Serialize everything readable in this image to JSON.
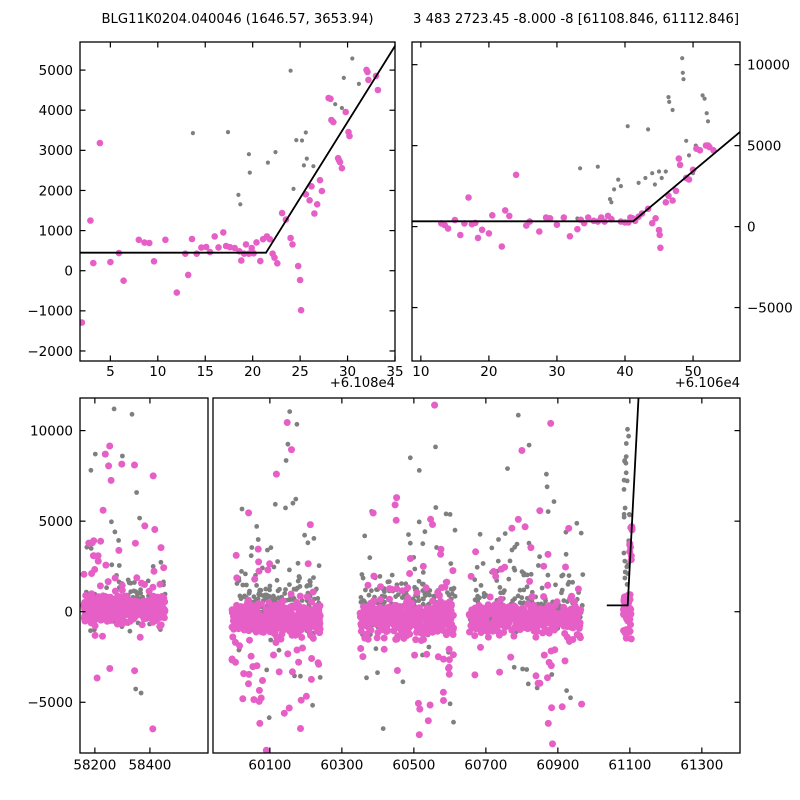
{
  "figure": {
    "titles": {
      "left": "BLG11K0204.040046 (1646.57, 3653.94)",
      "right": "3 483 2723.45 -8.000 -8 [61108.846, 61112.846]"
    },
    "offsets": {
      "left": "+6.108e4",
      "right": "+6.106e4"
    }
  },
  "colors": {
    "pink": "#e65fc6",
    "gray": "#7f7f7f",
    "line": "#000000",
    "frame": "#000000"
  },
  "chart_data": [
    {
      "type": "scatter",
      "title": "BLG11K0204.040046 (1646.57, 3653.94)",
      "x_offset_label": "+6.108e4",
      "xlim": [
        1.8,
        35
      ],
      "ylim": [
        -2250,
        5700
      ],
      "xticks": [
        5,
        10,
        15,
        20,
        25,
        30,
        35
      ],
      "yticks": [
        -2000,
        -1000,
        0,
        1000,
        2000,
        3000,
        4000,
        5000
      ],
      "y_label_side": "left",
      "line": [
        [
          1.8,
          450
        ],
        [
          21.4,
          450
        ],
        [
          35,
          5600
        ]
      ],
      "pink": [
        [
          2.0,
          -1290
        ],
        [
          2.9,
          1250
        ],
        [
          3.2,
          190
        ],
        [
          3.9,
          3180
        ],
        [
          5.0,
          215
        ],
        [
          5.9,
          440
        ],
        [
          6.4,
          -250
        ],
        [
          8.0,
          770
        ],
        [
          8.6,
          700
        ],
        [
          9.1,
          690
        ],
        [
          9.6,
          235
        ],
        [
          10.8,
          770
        ],
        [
          12.0,
          -545
        ],
        [
          12.9,
          425
        ],
        [
          13.2,
          -105
        ],
        [
          13.6,
          790
        ],
        [
          14.1,
          425
        ],
        [
          14.6,
          575
        ],
        [
          15.1,
          590
        ],
        [
          15.5,
          465
        ],
        [
          16.0,
          855
        ],
        [
          16.4,
          580
        ],
        [
          16.9,
          955
        ],
        [
          17.2,
          615
        ],
        [
          17.6,
          585
        ],
        [
          18.1,
          565
        ],
        [
          18.6,
          485
        ],
        [
          18.8,
          255
        ],
        [
          19.1,
          425
        ],
        [
          19.3,
          655
        ],
        [
          19.6,
          425
        ],
        [
          19.9,
          565
        ],
        [
          20.1,
          435
        ],
        [
          20.4,
          705
        ],
        [
          20.8,
          240
        ],
        [
          21.1,
          785
        ],
        [
          21.5,
          855
        ],
        [
          21.8,
          785
        ],
        [
          22.1,
          425
        ],
        [
          22.3,
          325
        ],
        [
          22.6,
          185
        ],
        [
          23.1,
          1435
        ],
        [
          23.5,
          1275
        ],
        [
          24.0,
          815
        ],
        [
          24.2,
          655
        ],
        [
          24.8,
          115
        ],
        [
          25.0,
          -235
        ],
        [
          25.1,
          -985
        ],
        [
          25.6,
          1905
        ],
        [
          26.0,
          1755
        ],
        [
          26.2,
          2105
        ],
        [
          26.5,
          1425
        ],
        [
          26.8,
          1655
        ],
        [
          27.1,
          2255
        ],
        [
          27.3,
          1985
        ],
        [
          28.0,
          4305
        ],
        [
          28.2,
          4285
        ],
        [
          28.3,
          3755
        ],
        [
          28.5,
          3705
        ],
        [
          29.0,
          2805
        ],
        [
          29.1,
          2755
        ],
        [
          29.2,
          2705
        ],
        [
          29.4,
          2555
        ],
        [
          29.8,
          3955
        ],
        [
          30.1,
          3455
        ],
        [
          30.2,
          3355
        ],
        [
          32.0,
          5005
        ],
        [
          32.1,
          4955
        ],
        [
          32.2,
          4755
        ],
        [
          33.0,
          4855
        ],
        [
          33.2,
          4505
        ]
      ],
      "gray": [
        [
          13.7,
          3430
        ],
        [
          17.4,
          3455
        ],
        [
          18.5,
          1890
        ],
        [
          18.7,
          1655
        ],
        [
          19.6,
          2905
        ],
        [
          19.7,
          2445
        ],
        [
          21.6,
          2695
        ],
        [
          22.4,
          2955
        ],
        [
          24.0,
          4985
        ],
        [
          24.3,
          2040
        ],
        [
          24.6,
          3255
        ],
        [
          25.2,
          3245
        ],
        [
          25.4,
          2625
        ],
        [
          25.6,
          3445
        ],
        [
          25.7,
          2795
        ],
        [
          26.4,
          2605
        ],
        [
          28.7,
          4150
        ],
        [
          29.4,
          4055
        ],
        [
          29.6,
          4805
        ],
        [
          30.5,
          5290
        ],
        [
          31.2,
          4655
        ]
      ]
    },
    {
      "type": "scatter",
      "title": "3 483 2723.45 -8.000 -8 [61108.846, 61112.846]",
      "x_offset_label": "+6.106e4",
      "xlim": [
        8.7,
        56.9
      ],
      "ylim": [
        -8300,
        11400
      ],
      "xticks": [
        10,
        20,
        30,
        40,
        50
      ],
      "yticks": [
        -5000,
        0,
        5000,
        10000
      ],
      "y_label_side": "right",
      "line": [
        [
          8.7,
          330
        ],
        [
          41.2,
          330
        ],
        [
          56.9,
          5840
        ]
      ],
      "pink": [
        [
          13.0,
          200
        ],
        [
          13.5,
          100
        ],
        [
          14.0,
          -120
        ],
        [
          15.0,
          400
        ],
        [
          15.8,
          -520
        ],
        [
          16.4,
          200
        ],
        [
          17.0,
          1800
        ],
        [
          17.5,
          150
        ],
        [
          18.0,
          230
        ],
        [
          18.4,
          -700
        ],
        [
          19.0,
          -200
        ],
        [
          20.0,
          -420
        ],
        [
          20.5,
          700
        ],
        [
          21.9,
          -1230
        ],
        [
          22.4,
          1000
        ],
        [
          23.0,
          660
        ],
        [
          24.0,
          3200
        ],
        [
          25.5,
          60
        ],
        [
          26.0,
          310
        ],
        [
          27.4,
          -300
        ],
        [
          28.4,
          560
        ],
        [
          29.0,
          510
        ],
        [
          30.0,
          120
        ],
        [
          31.0,
          560
        ],
        [
          31.9,
          -600
        ],
        [
          33.0,
          -160
        ],
        [
          33.5,
          420
        ],
        [
          34.0,
          210
        ],
        [
          34.6,
          560
        ],
        [
          35.4,
          360
        ],
        [
          36.0,
          310
        ],
        [
          36.5,
          560
        ],
        [
          37.0,
          310
        ],
        [
          37.5,
          660
        ],
        [
          38.0,
          460
        ],
        [
          39.4,
          310
        ],
        [
          40.0,
          260
        ],
        [
          40.5,
          260
        ],
        [
          40.8,
          560
        ],
        [
          41.1,
          510
        ],
        [
          41.5,
          360
        ],
        [
          42.0,
          610
        ],
        [
          42.5,
          810
        ],
        [
          43.4,
          1100
        ],
        [
          44.0,
          210
        ],
        [
          44.5,
          510
        ],
        [
          45.0,
          -210
        ],
        [
          45.1,
          -510
        ],
        [
          45.2,
          -1310
        ],
        [
          46.0,
          1500
        ],
        [
          46.4,
          1900
        ],
        [
          47.0,
          1610
        ],
        [
          47.5,
          2210
        ],
        [
          47.9,
          4200
        ],
        [
          48.1,
          3810
        ],
        [
          49.0,
          3010
        ],
        [
          49.4,
          2910
        ],
        [
          50.0,
          3510
        ],
        [
          50.5,
          4810
        ],
        [
          51.0,
          4710
        ],
        [
          51.9,
          5010
        ],
        [
          52.2,
          5010
        ],
        [
          52.4,
          4910
        ],
        [
          53.0,
          4710
        ]
      ],
      "gray": [
        [
          33.0,
          500
        ],
        [
          33.4,
          3600
        ],
        [
          36.0,
          3700
        ],
        [
          37.8,
          1700
        ],
        [
          38.0,
          1500
        ],
        [
          38.4,
          2300
        ],
        [
          39.0,
          2900
        ],
        [
          39.4,
          2500
        ],
        [
          40.4,
          6200
        ],
        [
          42.0,
          2700
        ],
        [
          43.0,
          3000
        ],
        [
          43.4,
          6000
        ],
        [
          44.0,
          3300
        ],
        [
          44.4,
          2600
        ],
        [
          45.0,
          3400
        ],
        [
          45.4,
          3000
        ],
        [
          46.0,
          3400
        ],
        [
          46.4,
          8000
        ],
        [
          46.5,
          7700
        ],
        [
          47.0,
          7200
        ],
        [
          48.4,
          10400
        ],
        [
          48.5,
          9500
        ],
        [
          48.6,
          9100
        ],
        [
          49.0,
          5300
        ],
        [
          49.4,
          4400
        ],
        [
          50.0,
          3300
        ],
        [
          50.4,
          5000
        ],
        [
          51.4,
          8100
        ],
        [
          51.7,
          7900
        ],
        [
          52.0,
          7000
        ],
        [
          52.2,
          6500
        ]
      ]
    },
    {
      "type": "scatter",
      "broken_x_axis": true,
      "ylim": [
        -7800,
        11800
      ],
      "yticks": [
        -5000,
        0,
        5000,
        10000
      ],
      "panels": [
        {
          "xlim": [
            58146,
            58611
          ],
          "xticks": [
            58200,
            58400
          ]
        },
        {
          "xlim": [
            59942,
            61406
          ],
          "xticks": [
            60100,
            60300,
            60500,
            60700,
            60900,
            61100,
            61300
          ]
        }
      ],
      "line": [
        [
          61036,
          350
        ],
        [
          61094,
          350
        ],
        [
          61124,
          11800
        ]
      ],
      "clusters": [
        {
          "color": "gray",
          "x": [
            58162,
            58458
          ],
          "count": 150,
          "center": 400,
          "sigma": 650,
          "out_frac": 0.2,
          "out_sigma": 2900,
          "out_up": 0.8,
          "seed": 21
        },
        {
          "color": "gray",
          "x": [
            59998,
            60242
          ],
          "count": 190,
          "center": 380,
          "sigma": 730,
          "out_frac": 0.24,
          "out_sigma": 3000,
          "out_up": 0.76,
          "seed": 41
        },
        {
          "color": "gray",
          "x": [
            60352,
            60615
          ],
          "count": 185,
          "center": 380,
          "sigma": 730,
          "out_frac": 0.23,
          "out_sigma": 3000,
          "out_up": 0.76,
          "seed": 61
        },
        {
          "color": "gray",
          "x": [
            60655,
            60970
          ],
          "count": 180,
          "center": 380,
          "sigma": 720,
          "out_frac": 0.23,
          "out_sigma": 2950,
          "out_up": 0.76,
          "seed": 81
        },
        {
          "color": "gray",
          "x": [
            61083,
            61101
          ],
          "count": 26,
          "uniform_y": [
            1500,
            10400
          ],
          "seed": 101
        },
        {
          "color": "pink",
          "x": [
            58160,
            58455
          ],
          "count": 480,
          "center": 130,
          "sigma": 320,
          "out_frac": 0.09,
          "out_sigma": 2400,
          "out_up": 0.75,
          "seed": 11
        },
        {
          "color": "pink",
          "x": [
            59995,
            60240
          ],
          "count": 470,
          "center": -380,
          "sigma": 430,
          "out_frac": 0.12,
          "out_sigma": 2700,
          "out_up": 0.42,
          "seed": 31
        },
        {
          "color": "pink",
          "x": [
            60350,
            60612
          ],
          "count": 450,
          "center": -380,
          "sigma": 430,
          "out_frac": 0.11,
          "out_sigma": 2600,
          "out_up": 0.45,
          "seed": 51
        },
        {
          "color": "pink",
          "x": [
            60652,
            60968
          ],
          "count": 440,
          "center": -380,
          "sigma": 420,
          "out_frac": 0.11,
          "out_sigma": 2600,
          "out_up": 0.45,
          "seed": 71
        },
        {
          "color": "pink",
          "x": [
            61082,
            61106
          ],
          "count": 48,
          "center": 100,
          "sigma": 750,
          "out_frac": 0.1,
          "out_sigma": 1500,
          "out_up": 0.3,
          "seed": 91
        },
        {
          "color": "pink",
          "x": [
            61099,
            61106
          ],
          "count": 10,
          "uniform_y": [
            2300,
            5200
          ],
          "seed": 111
        }
      ],
      "outliers": {
        "pink": [
          [
            58238,
            8700
          ],
          [
            58254,
            9150
          ],
          [
            58250,
            8050
          ],
          [
            58298,
            8150
          ],
          [
            58344,
            8100
          ],
          [
            58412,
            7500
          ],
          [
            58259,
            7250
          ],
          [
            58230,
            5600
          ],
          [
            60148,
            10450
          ],
          [
            60160,
            8950
          ],
          [
            60118,
            7600
          ],
          [
            60090,
            -7650
          ],
          [
            60185,
            -6450
          ],
          [
            60140,
            -5600
          ],
          [
            60452,
            6300
          ],
          [
            60448,
            5900
          ],
          [
            60545,
            -5150
          ],
          [
            60582,
            -4450
          ],
          [
            60880,
            10400
          ],
          [
            60800,
            8900
          ],
          [
            60885,
            -7300
          ],
          [
            60912,
            -5250
          ],
          [
            60845,
            -3950
          ],
          [
            60790,
            5100
          ],
          [
            60930,
            4600
          ]
        ],
        "gray": [
          [
            58270,
            11200
          ],
          [
            58335,
            10900
          ],
          [
            58300,
            8600
          ],
          [
            58368,
            -4490
          ],
          [
            60155,
            11050
          ],
          [
            60175,
            10350
          ],
          [
            60150,
            9250
          ],
          [
            60145,
            8350
          ],
          [
            60098,
            -5850
          ],
          [
            60560,
            9100
          ],
          [
            60490,
            8500
          ],
          [
            60515,
            7800
          ],
          [
            60610,
            -6100
          ],
          [
            60790,
            10850
          ],
          [
            60820,
            9200
          ],
          [
            60760,
            7900
          ],
          [
            60935,
            -4750
          ],
          [
            60870,
            6900
          ]
        ]
      }
    }
  ]
}
